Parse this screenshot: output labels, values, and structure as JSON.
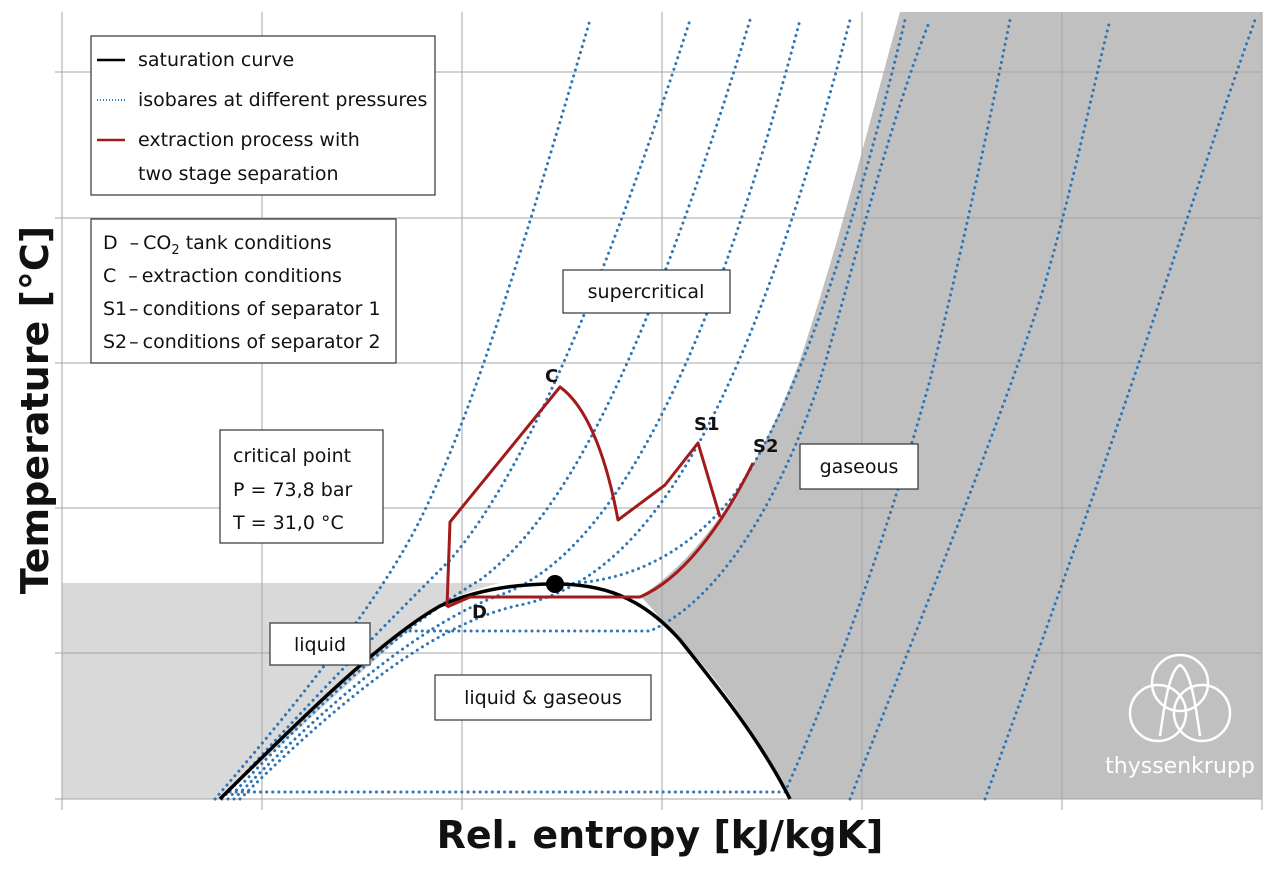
{
  "diagram": {
    "x_axis_label": "Rel. entropy [kJ/kgK]",
    "y_axis_label": "Temperature [°C]",
    "legend": [
      {
        "line_style": "solid",
        "color": "#000000",
        "label": "saturation curve"
      },
      {
        "line_style": "dotted",
        "color": "#2e75b6",
        "label": "isobares at different pressures"
      },
      {
        "line_style": "solid",
        "color": "#a31a1a",
        "label_line1": "extraction process with",
        "label_line2": "two stage separation"
      }
    ],
    "points_key": [
      {
        "code": "D",
        "prefix": "–",
        "text_a": "CO",
        "sub": "2",
        "text_b": " tank conditions"
      },
      {
        "code": "C",
        "prefix": "–",
        "text": "extraction conditions"
      },
      {
        "code": "S1",
        "prefix": "–",
        "text": "conditions of separator 1"
      },
      {
        "code": "S2",
        "prefix": "–",
        "text": "conditions of separator 2"
      }
    ],
    "regions": {
      "supercritical": "supercritical",
      "gaseous": "gaseous",
      "liquid": "liquid",
      "liquid_gaseous": "liquid & gaseous"
    },
    "critical_point": {
      "title": "critical point",
      "pressure": "P = 73,8 bar",
      "temperature": "T = 31,0 °C"
    },
    "point_labels": {
      "C": "C",
      "D": "D",
      "S1": "S1",
      "S2": "S2"
    },
    "colors": {
      "gas_region": "#c0c0c0",
      "liquid_region": "#d9d9d9",
      "isobar": "#2e75b6",
      "process": "#a31a1a",
      "saturation": "#000000"
    },
    "logo": {
      "text": "thyssenkrupp",
      "color": "#ffffff"
    }
  }
}
